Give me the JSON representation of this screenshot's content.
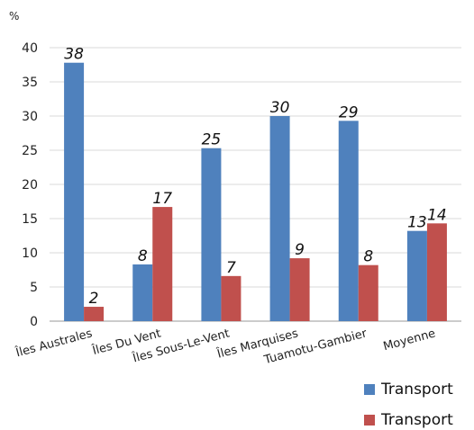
{
  "chart_data": {
    "type": "bar",
    "title": "",
    "xlabel": "",
    "ylabel": "%",
    "ylim": [
      0,
      40
    ],
    "yticks": [
      0,
      5,
      10,
      15,
      20,
      25,
      30,
      35,
      40
    ],
    "grid": true,
    "legend_position": "bottom-right",
    "categories": [
      "Îles Australes",
      "Îles Du Vent",
      "Îles Sous-Le-Vent",
      "Îles Marquises",
      "Tuamotu-Gambier",
      "Moyenne"
    ],
    "series": [
      {
        "name": "Transport",
        "color": "#4f81bd",
        "values": [
          37.8,
          8.3,
          25.3,
          30.0,
          29.3,
          13.2
        ]
      },
      {
        "name": "Transport",
        "color": "#c0504d",
        "values": [
          2.1,
          16.7,
          6.6,
          9.2,
          8.2,
          14.3
        ]
      }
    ],
    "data_labels": [
      [
        "38",
        "8",
        "25",
        "30",
        "29",
        "13"
      ],
      [
        "2",
        "17",
        "7",
        "9",
        "8",
        "14"
      ]
    ]
  }
}
